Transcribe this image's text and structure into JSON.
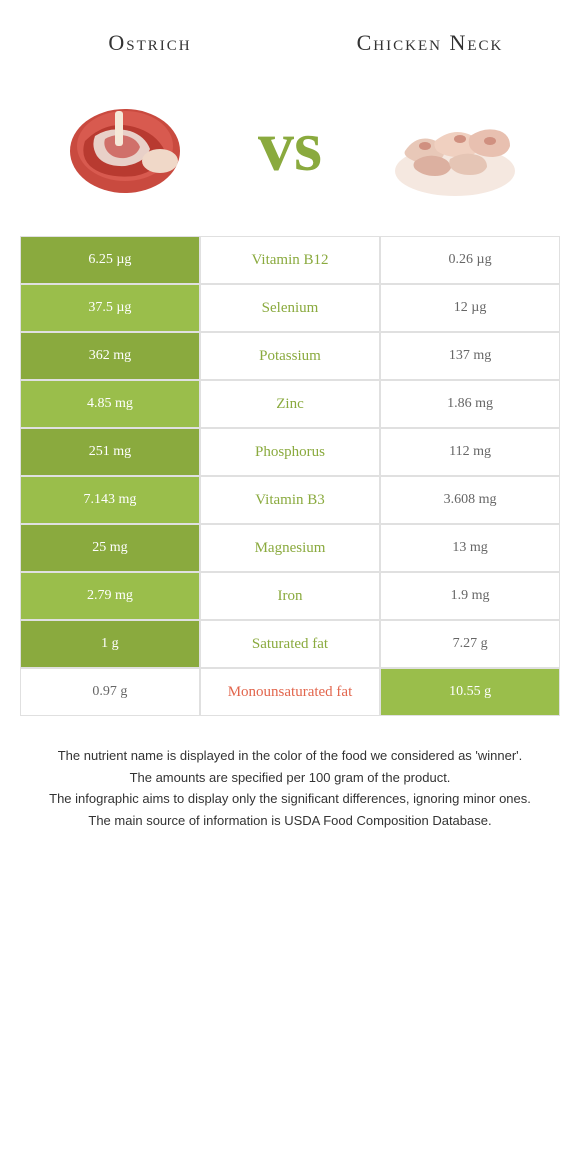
{
  "food1": {
    "name": "Ostrich",
    "color": "#8aaa3e"
  },
  "food2": {
    "name": "Chicken Neck",
    "color": "#e2664d"
  },
  "vs": "vs",
  "rows": [
    {
      "nutrient": "Vitamin B12",
      "left": "6.25 µg",
      "right": "0.26 µg",
      "winner": "left"
    },
    {
      "nutrient": "Selenium",
      "left": "37.5 µg",
      "right": "12 µg",
      "winner": "left"
    },
    {
      "nutrient": "Potassium",
      "left": "362 mg",
      "right": "137 mg",
      "winner": "left"
    },
    {
      "nutrient": "Zinc",
      "left": "4.85 mg",
      "right": "1.86 mg",
      "winner": "left"
    },
    {
      "nutrient": "Phosphorus",
      "left": "251 mg",
      "right": "112 mg",
      "winner": "left"
    },
    {
      "nutrient": "Vitamin B3",
      "left": "7.143 mg",
      "right": "3.608 mg",
      "winner": "left"
    },
    {
      "nutrient": "Magnesium",
      "left": "25 mg",
      "right": "13 mg",
      "winner": "left"
    },
    {
      "nutrient": "Iron",
      "left": "2.79 mg",
      "right": "1.9 mg",
      "winner": "left"
    },
    {
      "nutrient": "Saturated fat",
      "left": "1 g",
      "right": "7.27 g",
      "winner": "left"
    },
    {
      "nutrient": "Monounsaturated fat",
      "left": "0.97 g",
      "right": "10.55 g",
      "winner": "right"
    }
  ],
  "colors": {
    "green_dark": "#8aaa3e",
    "green_light": "#9abe4b",
    "orange": "#e2664d",
    "white_cell_bg": "#ffffff",
    "border": "#e5e5e5"
  },
  "footnote": {
    "line1": "The nutrient name is displayed in the color of the food we considered as 'winner'.",
    "line2": "The amounts are specified per 100 gram of the product.",
    "line3": "The infographic aims to display only the significant differences, ignoring minor ones.",
    "line4": "The main source of information is USDA Food Composition Database."
  }
}
